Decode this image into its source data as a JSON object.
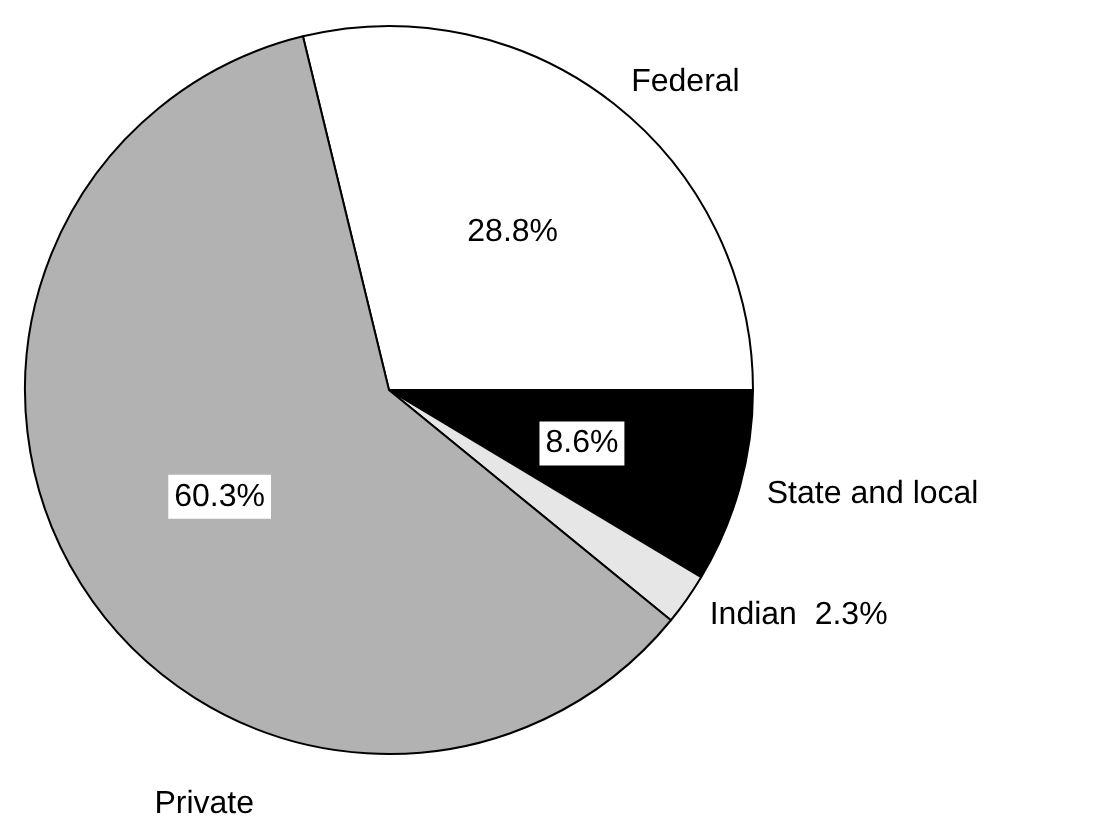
{
  "chart_data": {
    "type": "pie",
    "categories": [
      "Federal",
      "State and local",
      "Indian",
      "Private"
    ],
    "values": [
      28.8,
      8.6,
      2.3,
      60.3
    ],
    "colors": [
      "#ffffff",
      "#000000",
      "#e6e6e6",
      "#b2b2b2"
    ],
    "value_labels": [
      "28.8%",
      "8.6%",
      "2.3%",
      "60.3%"
    ],
    "legend": false
  }
}
